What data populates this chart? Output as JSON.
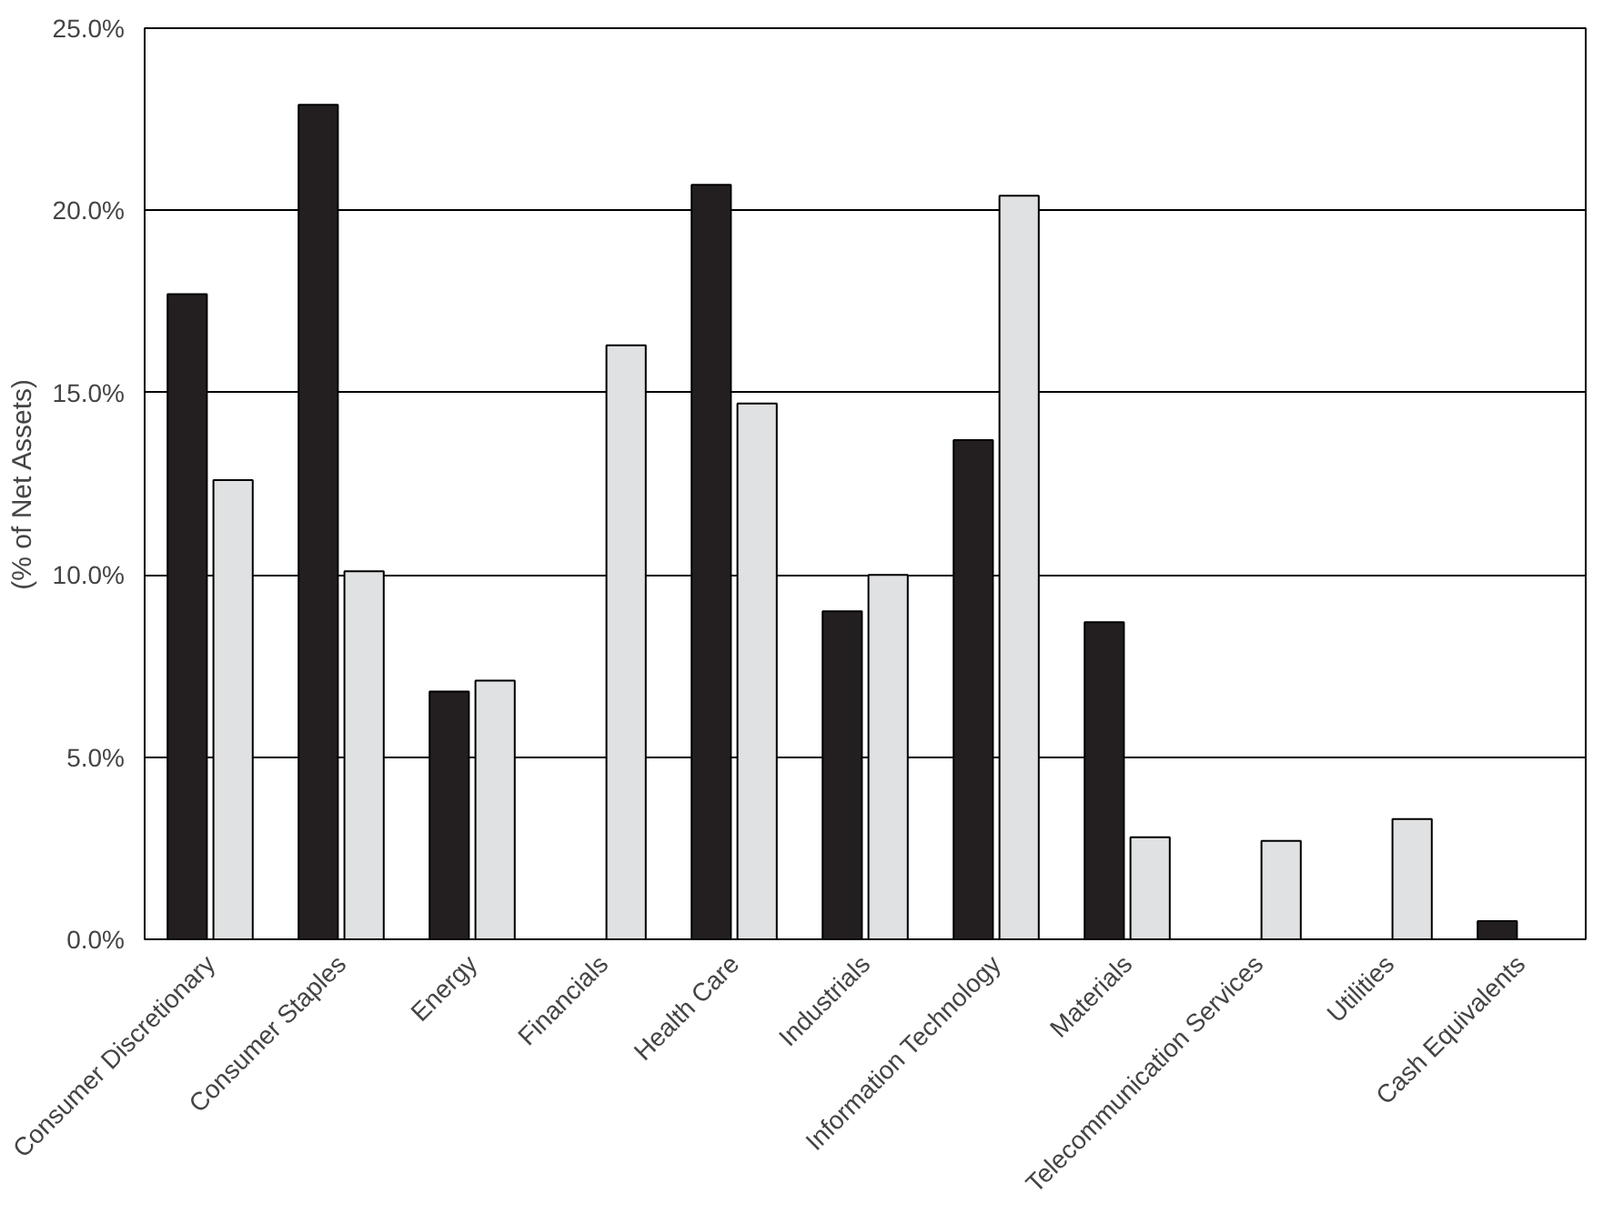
{
  "chart_data": {
    "type": "bar",
    "ylabel": "(% of Net Assets)",
    "categories": [
      "Consumer Discretionary",
      "Consumer Staples",
      "Energy",
      "Financials",
      "Health Care",
      "Industrials",
      "Information Technology",
      "Materials",
      "Telecommunication Services",
      "Utilities",
      "Cash Equivalents"
    ],
    "series": [
      {
        "color": "#231f20",
        "values": [
          17.7,
          22.9,
          6.8,
          null,
          20.7,
          9.0,
          13.7,
          8.7,
          null,
          null,
          0.5
        ]
      },
      {
        "color": "#e0e1e2",
        "values": [
          12.6,
          10.1,
          7.1,
          16.3,
          14.7,
          10.0,
          20.4,
          2.8,
          2.7,
          3.3,
          null
        ]
      }
    ],
    "ylim": [
      0,
      25
    ],
    "yticks": [
      {
        "value": 0,
        "label": "0.0%"
      },
      {
        "value": 5,
        "label": "5.0%"
      },
      {
        "value": 10,
        "label": "10.0%"
      },
      {
        "value": 15,
        "label": "15.0%"
      },
      {
        "value": 20,
        "label": "20.0%"
      },
      {
        "value": 25,
        "label": "25.0%"
      }
    ],
    "grid": "y"
  }
}
